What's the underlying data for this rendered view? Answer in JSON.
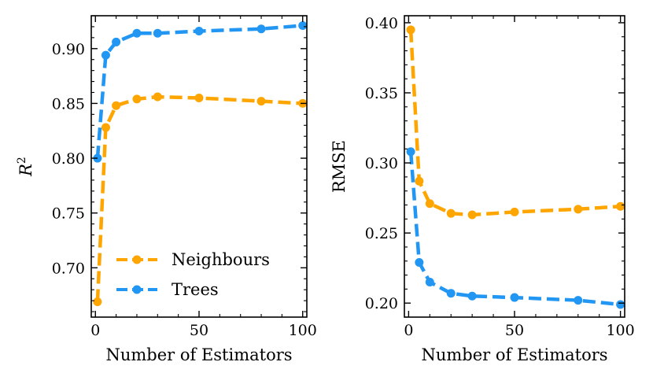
{
  "chart_data": [
    {
      "type": "line",
      "title": "",
      "xlabel": "Number of Estimators",
      "ylabel": "R²",
      "ylabel_base": "R",
      "ylabel_sup": "2",
      "xlim": [
        -2,
        102
      ],
      "ylim": [
        0.655,
        0.93
      ],
      "xticks": [
        0,
        50,
        100
      ],
      "xtick_labels": [
        "0",
        "50",
        "100"
      ],
      "yticks": [
        0.7,
        0.75,
        0.8,
        0.85,
        0.9
      ],
      "ytick_labels": [
        "0.70",
        "0.75",
        "0.80",
        "0.85",
        "0.90"
      ],
      "legend": {
        "placement": "lower-right"
      },
      "series": [
        {
          "name": "Neighbours",
          "color": "#FFA500",
          "x": [
            1,
            5,
            10,
            20,
            30,
            50,
            80,
            100
          ],
          "values": [
            0.669,
            0.828,
            0.848,
            0.854,
            0.856,
            0.855,
            0.852,
            0.85
          ]
        },
        {
          "name": "Trees",
          "color": "#2196F3",
          "x": [
            1,
            5,
            10,
            20,
            30,
            50,
            80,
            100
          ],
          "values": [
            0.8,
            0.894,
            0.906,
            0.914,
            0.914,
            0.916,
            0.918,
            0.921
          ]
        }
      ]
    },
    {
      "type": "line",
      "title": "",
      "xlabel": "Number of Estimators",
      "ylabel": "RMSE",
      "xlim": [
        -2,
        102
      ],
      "ylim": [
        0.19,
        0.405
      ],
      "xticks": [
        0,
        50,
        100
      ],
      "xtick_labels": [
        "0",
        "50",
        "100"
      ],
      "yticks": [
        0.2,
        0.25,
        0.3,
        0.35,
        0.4
      ],
      "ytick_labels": [
        "0.20",
        "0.25",
        "0.30",
        "0.35",
        "0.40"
      ],
      "series": [
        {
          "name": "Neighbours",
          "color": "#FFA500",
          "x": [
            1,
            5,
            10,
            20,
            30,
            50,
            80,
            100
          ],
          "values": [
            0.395,
            0.287,
            0.271,
            0.264,
            0.263,
            0.265,
            0.267,
            0.269
          ]
        },
        {
          "name": "Trees",
          "color": "#2196F3",
          "x": [
            1,
            5,
            10,
            20,
            30,
            50,
            80,
            100
          ],
          "values": [
            0.308,
            0.229,
            0.215,
            0.207,
            0.205,
            0.204,
            0.202,
            0.199
          ]
        }
      ]
    }
  ]
}
